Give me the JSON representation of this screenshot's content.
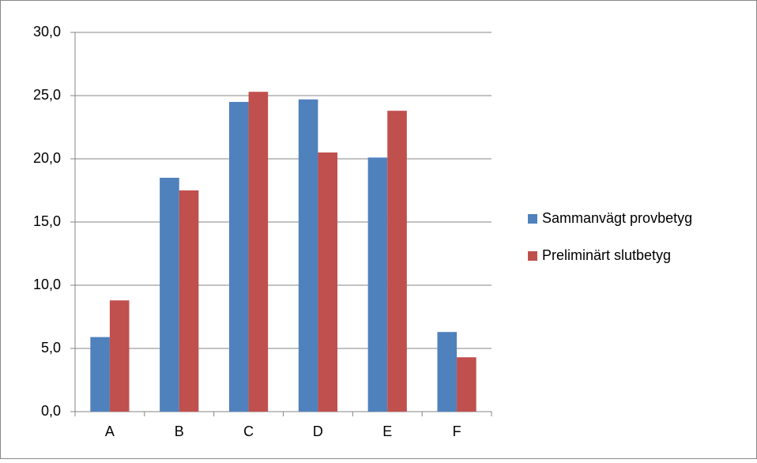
{
  "chart_data": {
    "type": "bar",
    "categories": [
      "A",
      "B",
      "C",
      "D",
      "E",
      "F"
    ],
    "series": [
      {
        "name": "Sammanvägt provbetyg",
        "color": "#4f81bd",
        "values": [
          5.9,
          18.5,
          24.5,
          24.7,
          20.1,
          6.3
        ]
      },
      {
        "name": "Preliminärt slutbetyg",
        "color": "#c0504d",
        "values": [
          8.8,
          17.5,
          25.3,
          20.5,
          23.8,
          4.3
        ]
      }
    ],
    "ylim": [
      0,
      30
    ],
    "yticks": [
      {
        "value": 0,
        "label": "0,0"
      },
      {
        "value": 5,
        "label": "5,0"
      },
      {
        "value": 10,
        "label": "10,0"
      },
      {
        "value": 15,
        "label": "15,0"
      },
      {
        "value": 20,
        "label": "20,0"
      },
      {
        "value": 25,
        "label": "25,0"
      },
      {
        "value": 30,
        "label": "30,0"
      }
    ],
    "grid": true,
    "legend": "right"
  }
}
